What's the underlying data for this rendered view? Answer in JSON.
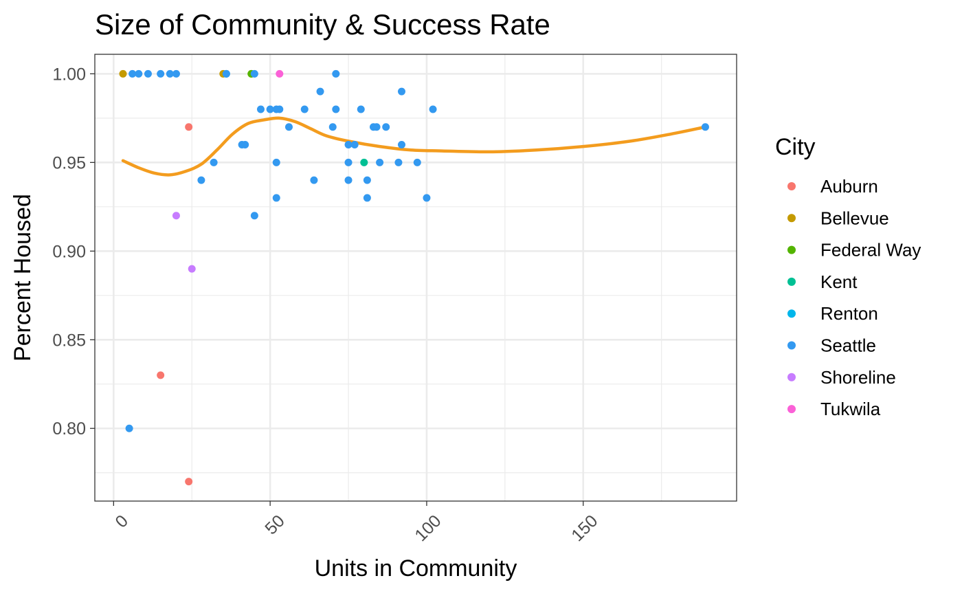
{
  "chart_data": {
    "type": "scatter",
    "title": "Size of Community & Success Rate",
    "xlabel": "Units in Community",
    "ylabel": "Percent Housed",
    "xlim": [
      -6,
      199
    ],
    "ylim": [
      0.759,
      1.011
    ],
    "x_ticks": [
      0,
      50,
      100,
      150
    ],
    "x_tick_labels": [
      "0",
      "50",
      "100",
      "150"
    ],
    "x_minor_ticks": [
      25,
      75,
      125,
      175
    ],
    "y_ticks": [
      0.8,
      0.85,
      0.9,
      0.95,
      1.0
    ],
    "y_tick_labels": [
      "0.80",
      "0.85",
      "0.90",
      "0.95",
      "1.00"
    ],
    "y_minor_ticks": [
      0.775,
      0.825,
      0.875,
      0.925,
      0.975
    ],
    "grid": true,
    "legend": {
      "title": "City",
      "position": "right",
      "entries": [
        {
          "name": "Auburn",
          "color": "#F8766D"
        },
        {
          "name": "Bellevue",
          "color": "#C49A00"
        },
        {
          "name": "Federal Way",
          "color": "#53B400"
        },
        {
          "name": "Kent",
          "color": "#00C094"
        },
        {
          "name": "Renton",
          "color": "#00B6EB"
        },
        {
          "name": "Seattle",
          "color": "#3399F0"
        },
        {
          "name": "Shoreline",
          "color": "#C77CFF"
        },
        {
          "name": "Tukwila",
          "color": "#FB61D7"
        }
      ]
    },
    "series": [
      {
        "name": "Auburn",
        "points": [
          [
            24,
            0.97
          ],
          [
            15,
            0.83
          ],
          [
            24,
            0.77
          ]
        ]
      },
      {
        "name": "Bellevue",
        "points": [
          [
            3,
            1.0
          ],
          [
            35,
            1.0
          ],
          [
            44,
            1.0
          ]
        ]
      },
      {
        "name": "Federal Way",
        "points": [
          [
            44,
            1.0
          ]
        ]
      },
      {
        "name": "Kent",
        "points": [
          [
            80,
            0.95
          ]
        ]
      },
      {
        "name": "Renton",
        "points": [
          [
            36,
            1.0
          ]
        ]
      },
      {
        "name": "Seattle",
        "points": [
          [
            6,
            1.0
          ],
          [
            8,
            1.0
          ],
          [
            11,
            1.0
          ],
          [
            15,
            1.0
          ],
          [
            18,
            1.0
          ],
          [
            20,
            1.0
          ],
          [
            36,
            1.0
          ],
          [
            45,
            1.0
          ],
          [
            71,
            1.0
          ],
          [
            66,
            0.99
          ],
          [
            92,
            0.99
          ],
          [
            47,
            0.98
          ],
          [
            50,
            0.98
          ],
          [
            52,
            0.98
          ],
          [
            53,
            0.98
          ],
          [
            61,
            0.98
          ],
          [
            71,
            0.98
          ],
          [
            79,
            0.98
          ],
          [
            102,
            0.98
          ],
          [
            56,
            0.97
          ],
          [
            70,
            0.97
          ],
          [
            83,
            0.97
          ],
          [
            84,
            0.97
          ],
          [
            87,
            0.97
          ],
          [
            189,
            0.97
          ],
          [
            41,
            0.96
          ],
          [
            42,
            0.96
          ],
          [
            75,
            0.96
          ],
          [
            77,
            0.96
          ],
          [
            92,
            0.96
          ],
          [
            32,
            0.95
          ],
          [
            52,
            0.95
          ],
          [
            75,
            0.95
          ],
          [
            85,
            0.95
          ],
          [
            91,
            0.95
          ],
          [
            97,
            0.95
          ],
          [
            28,
            0.94
          ],
          [
            64,
            0.94
          ],
          [
            75,
            0.94
          ],
          [
            81,
            0.94
          ],
          [
            52,
            0.93
          ],
          [
            81,
            0.93
          ],
          [
            100,
            0.93
          ],
          [
            45,
            0.92
          ],
          [
            5,
            0.8
          ]
        ]
      },
      {
        "name": "Shoreline",
        "points": [
          [
            20,
            0.92
          ],
          [
            25,
            0.89
          ]
        ]
      },
      {
        "name": "Tukwila",
        "points": [
          [
            53,
            1.0
          ]
        ]
      }
    ],
    "trend_line": {
      "method": "loess",
      "color": "#F39C1E",
      "points": [
        [
          3,
          0.951
        ],
        [
          8,
          0.947
        ],
        [
          13,
          0.944
        ],
        [
          18,
          0.943
        ],
        [
          23,
          0.945
        ],
        [
          28,
          0.949
        ],
        [
          33,
          0.957
        ],
        [
          38,
          0.966
        ],
        [
          43,
          0.972
        ],
        [
          48,
          0.974
        ],
        [
          53,
          0.975
        ],
        [
          58,
          0.973
        ],
        [
          63,
          0.969
        ],
        [
          68,
          0.965
        ],
        [
          75,
          0.962
        ],
        [
          85,
          0.959
        ],
        [
          95,
          0.957
        ],
        [
          105,
          0.9565
        ],
        [
          120,
          0.956
        ],
        [
          135,
          0.957
        ],
        [
          150,
          0.959
        ],
        [
          165,
          0.962
        ],
        [
          178,
          0.966
        ],
        [
          189,
          0.97
        ]
      ]
    }
  }
}
